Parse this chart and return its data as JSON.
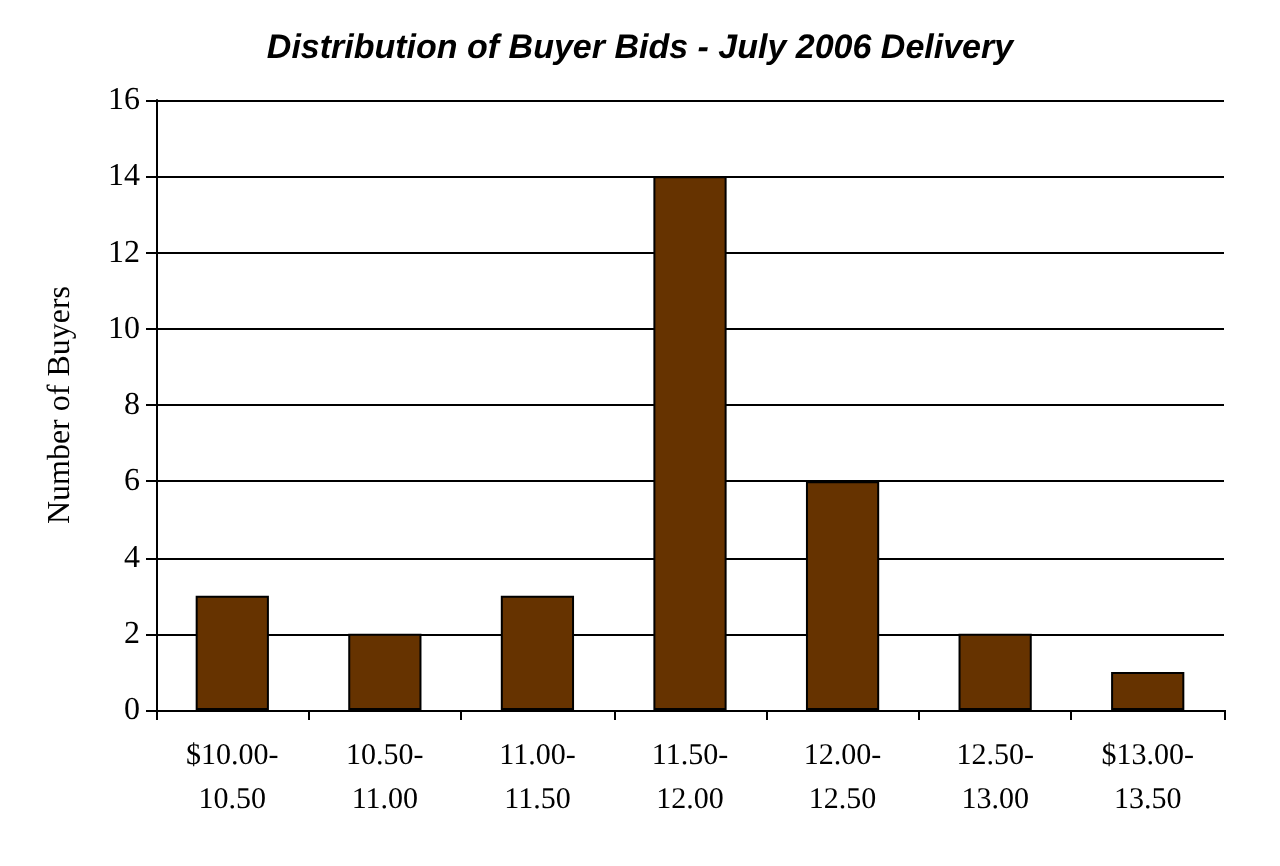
{
  "chart_data": {
    "type": "bar",
    "title": "Distribution of Buyer Bids - July 2006 Delivery",
    "ylabel": "Number of Buyers",
    "categories": [
      "$10.00-\n10.50",
      "10.50-\n11.00",
      "11.00-\n11.50",
      "11.50-\n12.00",
      "12.00-\n12.50",
      "12.50-\n13.00",
      "$13.00-\n13.50"
    ],
    "values": [
      3,
      2,
      3,
      14,
      6,
      2,
      1
    ],
    "color": "#663300",
    "ylim": [
      0,
      16
    ],
    "yticks": [
      0,
      2,
      4,
      6,
      8,
      10,
      12,
      14,
      16
    ],
    "grid": "y"
  }
}
